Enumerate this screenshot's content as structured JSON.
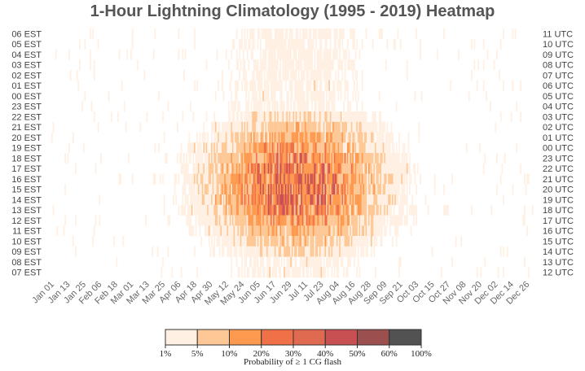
{
  "chart_data": {
    "type": "heatmap",
    "title": "1-Hour Lightning Climatology (1995 - 2019) Heatmap",
    "y_left_labels": [
      "06 EST",
      "05 EST",
      "04 EST",
      "03 EST",
      "02 EST",
      "01 EST",
      "00 EST",
      "23 EST",
      "22 EST",
      "21 EST",
      "20 EST",
      "19 EST",
      "18 EST",
      "17 EST",
      "16 EST",
      "15 EST",
      "14 EST",
      "13 EST",
      "12 EST",
      "11 EST",
      "10 EST",
      "09 EST",
      "08 EST",
      "07 EST"
    ],
    "y_right_labels": [
      "11 UTC",
      "10 UTC",
      "09 UTC",
      "08 UTC",
      "07 UTC",
      "06 UTC",
      "05 UTC",
      "04 UTC",
      "03 UTC",
      "02 UTC",
      "01 UTC",
      "00 UTC",
      "23 UTC",
      "22 UTC",
      "21 UTC",
      "20 UTC",
      "19 UTC",
      "18 UTC",
      "17 UTC",
      "16 UTC",
      "15 UTC",
      "14 UTC",
      "13 UTC",
      "12 UTC"
    ],
    "x_tick_labels": [
      "Jan 01",
      "Jan 13",
      "Jan 25",
      "Feb 06",
      "Feb 18",
      "Mar 01",
      "Mar 13",
      "Mar 25",
      "Apr 06",
      "Apr 18",
      "Apr 30",
      "May 12",
      "May 24",
      "Jun 05",
      "Jun 17",
      "Jun 29",
      "Jul 11",
      "Jul 23",
      "Aug 04",
      "Aug 16",
      "Aug 28",
      "Sep 09",
      "Sep 21",
      "Oct 03",
      "Oct 15",
      "Oct 27",
      "Nov 08",
      "Nov 20",
      "Dec 02",
      "Dec 14",
      "Dec 26"
    ],
    "x_days": 366,
    "legend": {
      "title": "Probability of ≥ 1 CG flash",
      "boundaries": [
        "1%",
        "5%",
        "10%",
        "20%",
        "30%",
        "40%",
        "50%",
        "60%",
        "100%"
      ],
      "colors": [
        "#fff0e3",
        "#fdc895",
        "#fd9a4f",
        "#f07048",
        "#e06a50",
        "#c95052",
        "#9b4f4f",
        "#525252"
      ]
    }
  }
}
